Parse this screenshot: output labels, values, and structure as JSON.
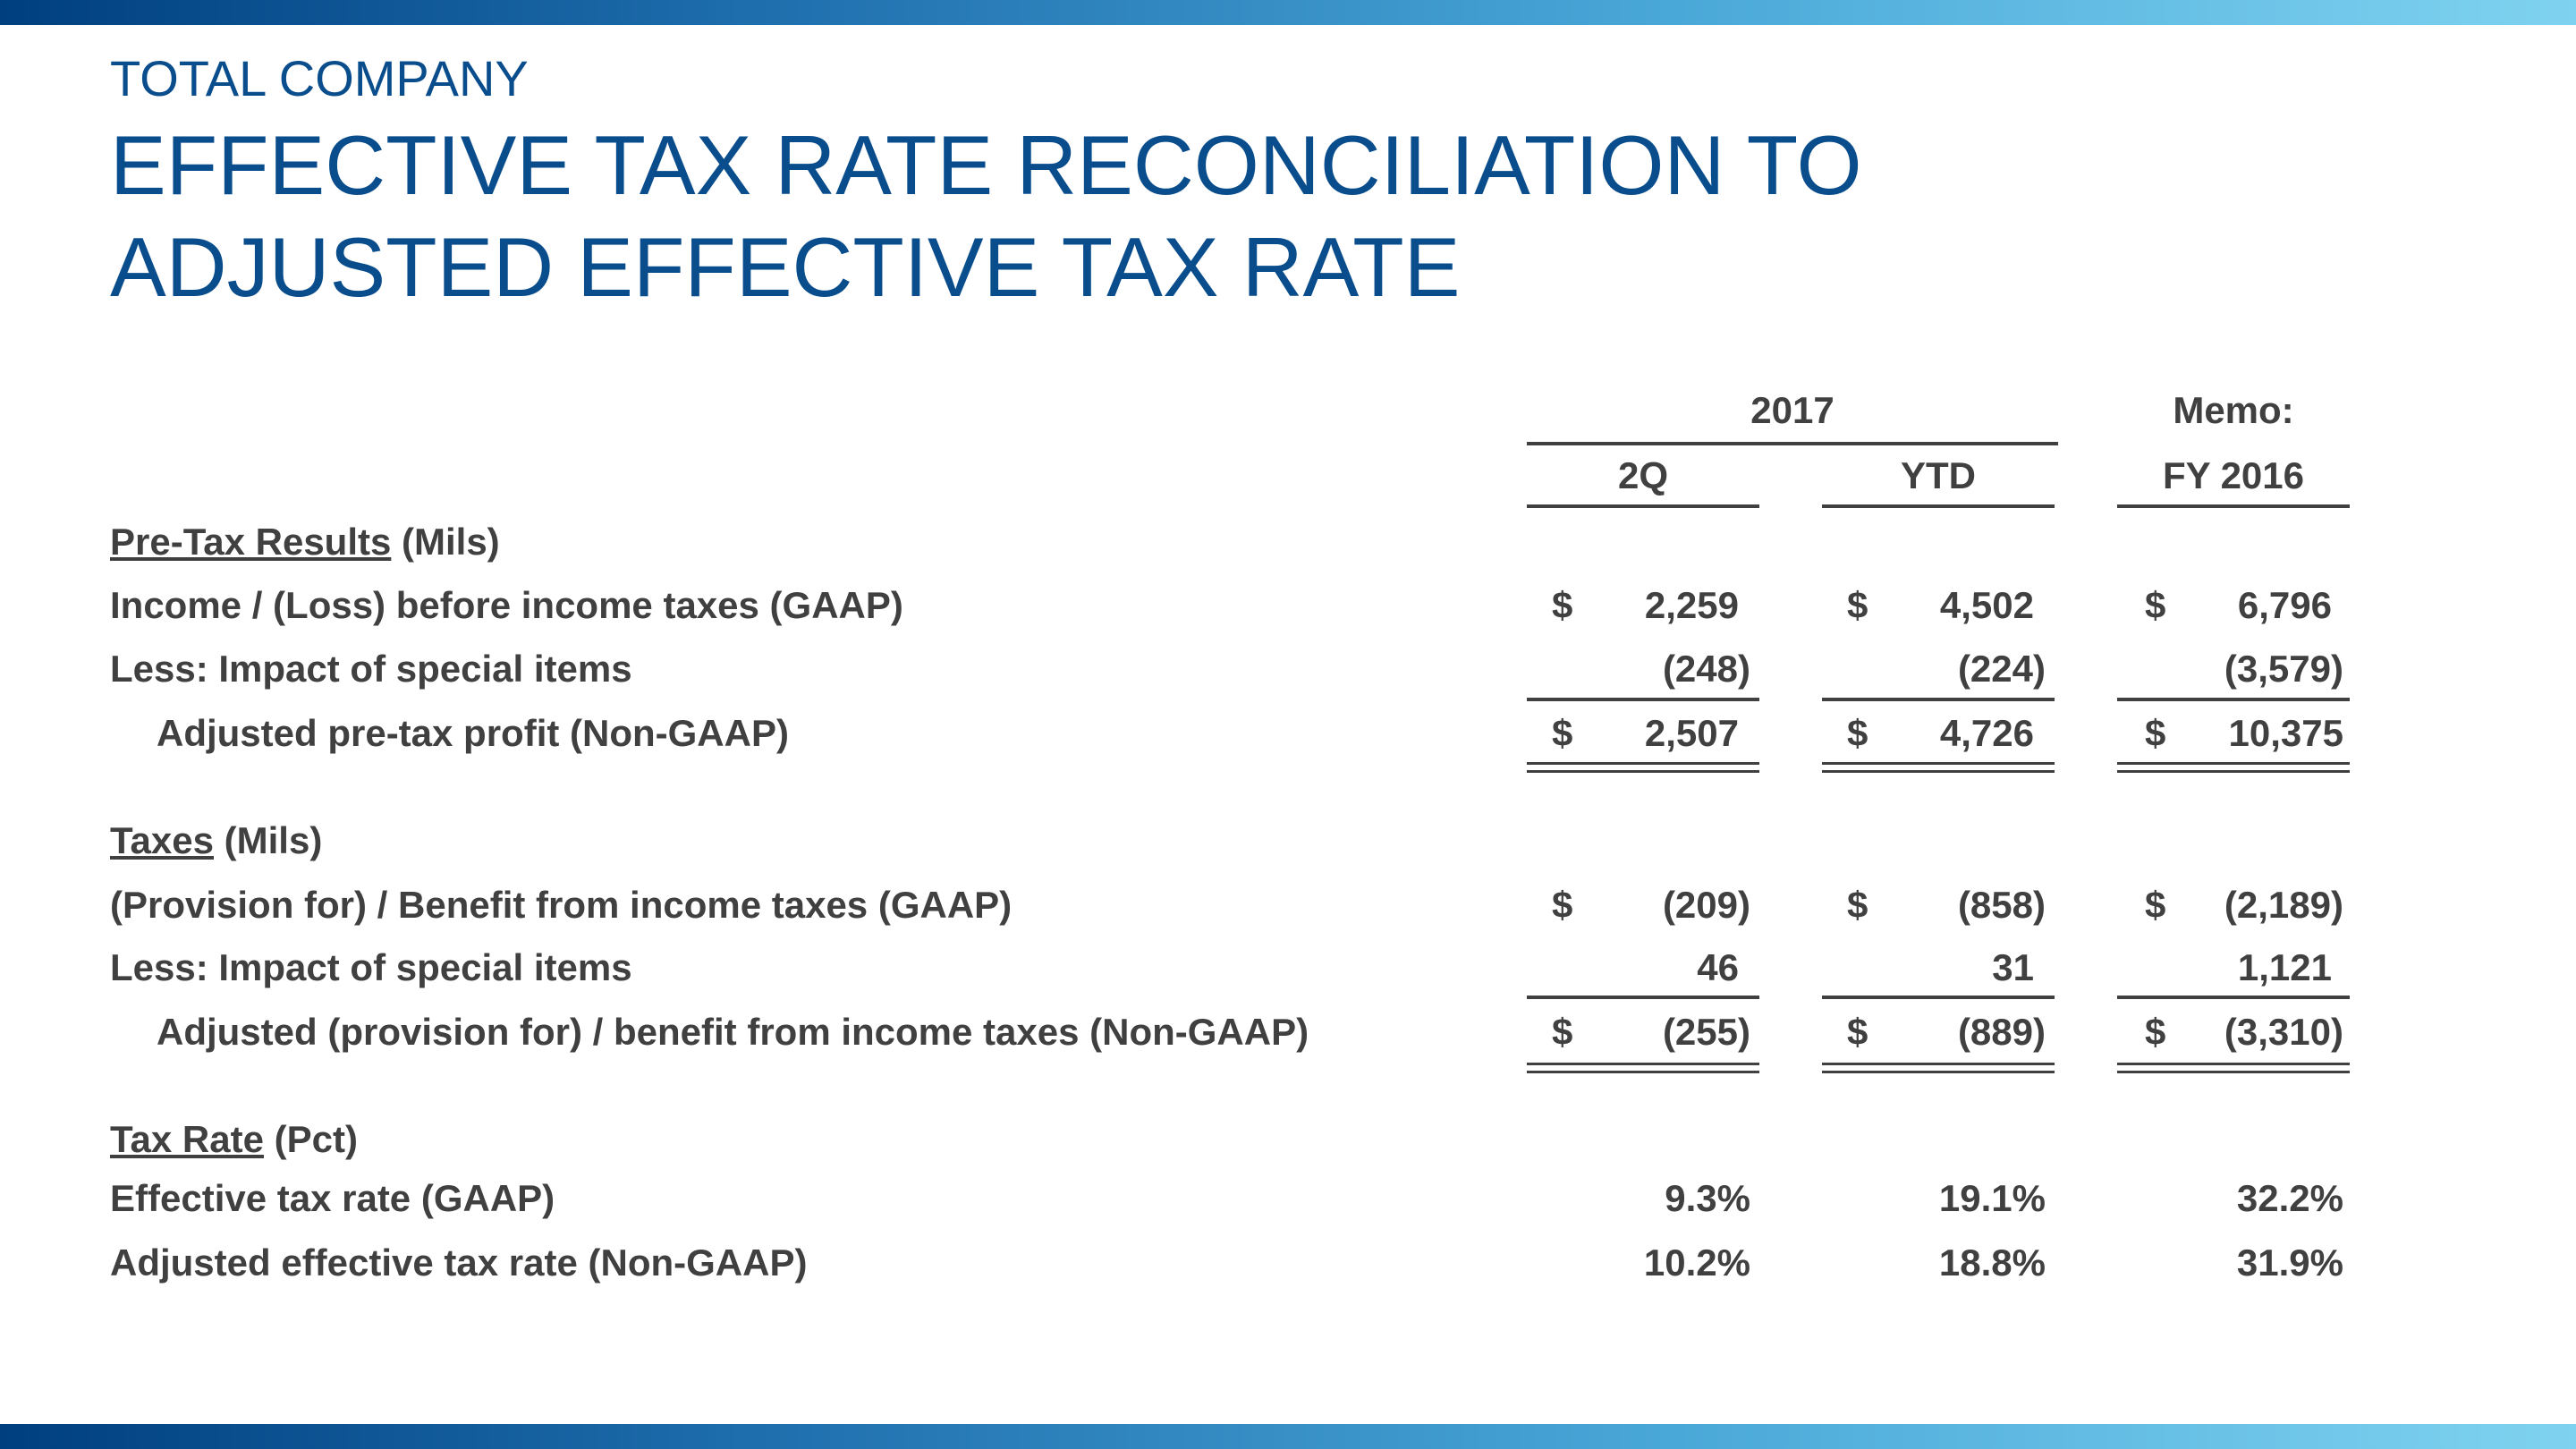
{
  "header": {
    "kicker": "TOTAL COMPANY",
    "title_line1": "EFFECTIVE TAX RATE RECONCILIATION TO",
    "title_line2": "ADJUSTED EFFECTIVE TAX RATE"
  },
  "columns": {
    "group_2017": "2017",
    "memo": "Memo:",
    "col1": "2Q",
    "col2": "YTD",
    "col3": "FY 2016"
  },
  "sections": {
    "pretax": {
      "title": "Pre-Tax Results",
      "unit": " (Mils)"
    },
    "taxes": {
      "title": "Taxes",
      "unit": " (Mils)"
    },
    "rate": {
      "title": "Tax Rate",
      "unit": " (Pct)"
    }
  },
  "rows": {
    "r1": {
      "label": "Income / (Loss) before income taxes (GAAP)",
      "d1": "$",
      "v1": "2,259",
      "d2": "$",
      "v2": "4,502",
      "d3": "$",
      "v3": "6,796"
    },
    "r2": {
      "label": "Less:  Impact of special items",
      "v1": "(248)",
      "v2": "(224)",
      "v3": "(3,579)"
    },
    "r3": {
      "label": "Adjusted pre-tax profit (Non-GAAP)",
      "d1": "$",
      "v1": "2,507",
      "d2": "$",
      "v2": "4,726",
      "d3": "$",
      "v3": "10,375"
    },
    "r4": {
      "label": "(Provision for) / Benefit from income taxes (GAAP)",
      "d1": "$",
      "v1": "(209)",
      "d2": "$",
      "v2": "(858)",
      "d3": "$",
      "v3": "(2,189)"
    },
    "r5": {
      "label": "Less:  Impact of special items",
      "v1": "46",
      "v2": "31",
      "v3": "1,121"
    },
    "r6": {
      "label": "Adjusted (provision for) / benefit from income taxes (Non-GAAP)",
      "d1": "$",
      "v1": "(255)",
      "d2": "$",
      "v2": "(889)",
      "d3": "$",
      "v3": "(3,310)"
    },
    "r7": {
      "label": "Effective tax rate (GAAP)",
      "v1": "9.3%",
      "v2": "19.1%",
      "v3": "32.2%"
    },
    "r8": {
      "label": "Adjusted effective tax rate (Non-GAAP)",
      "v1": "10.2%",
      "v2": "18.8%",
      "v3": "31.9%"
    }
  }
}
